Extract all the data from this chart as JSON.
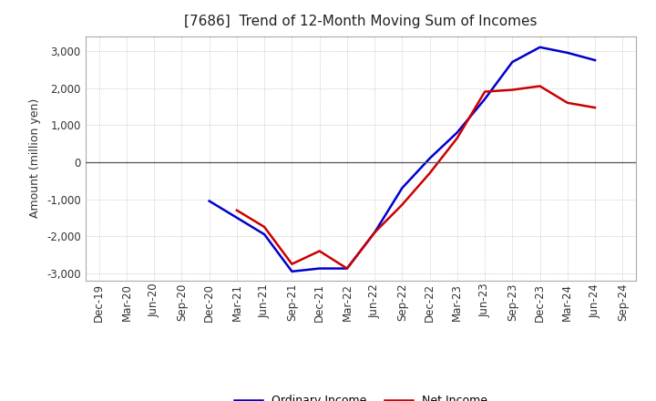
{
  "title": "[7686]  Trend of 12-Month Moving Sum of Incomes",
  "ylabel": "Amount (million yen)",
  "ylim": [
    -3200,
    3400
  ],
  "yticks": [
    -3000,
    -2000,
    -1000,
    0,
    1000,
    2000,
    3000
  ],
  "background_color": "#ffffff",
  "grid_color": "#aaaaaa",
  "x_labels": [
    "Dec-19",
    "Mar-20",
    "Jun-20",
    "Sep-20",
    "Dec-20",
    "Mar-21",
    "Jun-21",
    "Sep-21",
    "Dec-21",
    "Mar-22",
    "Jun-22",
    "Sep-22",
    "Dec-22",
    "Mar-23",
    "Jun-23",
    "Sep-23",
    "Dec-23",
    "Mar-24",
    "Jun-24",
    "Sep-24"
  ],
  "ordinary_income": [
    null,
    null,
    null,
    null,
    -1050,
    -1500,
    -1950,
    -2950,
    -2870,
    -2870,
    -1900,
    -700,
    100,
    800,
    1700,
    2700,
    3100,
    2950,
    2750,
    null
  ],
  "net_income": [
    null,
    null,
    null,
    null,
    null,
    -1300,
    -1750,
    -2750,
    -2400,
    -2870,
    -1900,
    -1150,
    -300,
    650,
    1900,
    1950,
    2050,
    1600,
    1470,
    null
  ],
  "ordinary_color": "#0000cc",
  "net_color": "#cc0000",
  "line_width": 1.8,
  "title_fontsize": 11,
  "title_fontweight": "normal",
  "axis_label_fontsize": 9,
  "tick_fontsize": 8.5,
  "legend_fontsize": 9
}
